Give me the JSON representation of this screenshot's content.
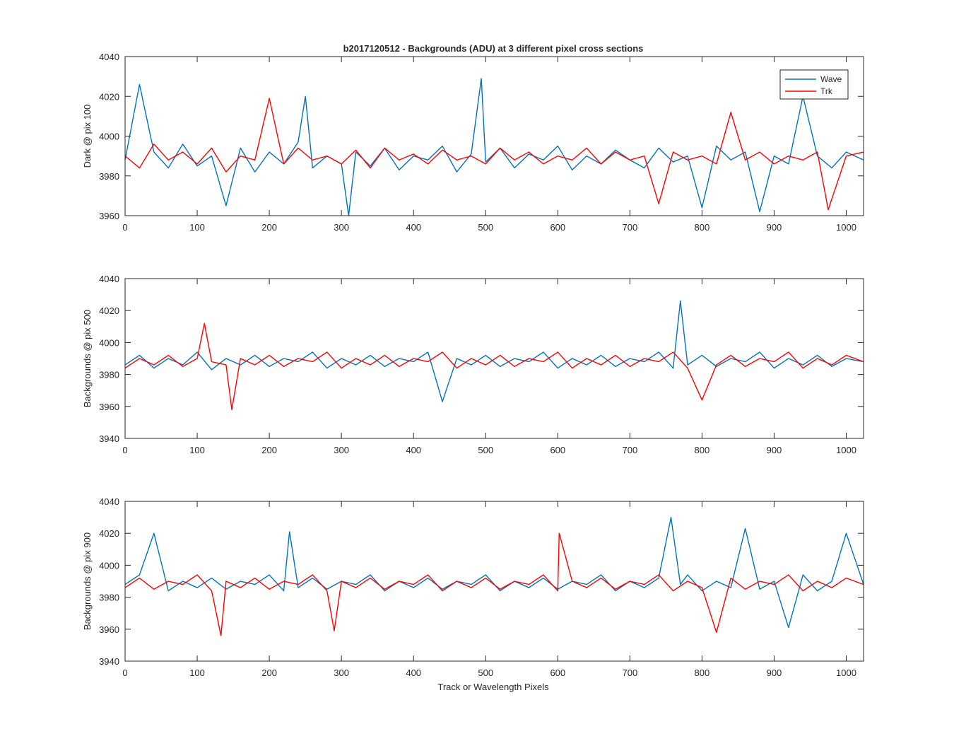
{
  "figure": {
    "title": "b2017120512 - Backgrounds (ADU) at 3 different pixel cross sections",
    "xlabel": "Track or Wavelength Pixels"
  },
  "legend": {
    "entries": [
      {
        "name": "Wave",
        "color": "#0072BD"
      },
      {
        "name": "Trk",
        "color": "#FF0000"
      }
    ],
    "placement": "top-right of first panel"
  },
  "chart_data": [
    {
      "type": "line",
      "ylabel": "Dark @ pix 100",
      "xlim": [
        0,
        1024
      ],
      "ylim": [
        3960,
        4040
      ],
      "xticks": [
        0,
        100,
        200,
        300,
        400,
        500,
        600,
        700,
        800,
        900,
        1000
      ],
      "yticks": [
        3960,
        3980,
        4000,
        4020,
        4040
      ],
      "series": [
        {
          "name": "Wave",
          "color": "#0072BD",
          "x": [
            0,
            20,
            40,
            60,
            80,
            100,
            120,
            140,
            160,
            180,
            200,
            220,
            240,
            250,
            260,
            280,
            300,
            310,
            320,
            340,
            360,
            380,
            400,
            420,
            440,
            460,
            480,
            494,
            500,
            520,
            540,
            560,
            580,
            600,
            620,
            640,
            660,
            680,
            700,
            720,
            740,
            760,
            780,
            800,
            820,
            840,
            860,
            880,
            900,
            920,
            940,
            960,
            980,
            1000,
            1024
          ],
          "y": [
            3988,
            4026,
            3992,
            3984,
            3996,
            3985,
            3990,
            3965,
            3994,
            3982,
            3992,
            3986,
            3997,
            4020,
            3984,
            3990,
            3986,
            3960,
            3992,
            3985,
            3994,
            3983,
            3990,
            3988,
            3995,
            3982,
            3991,
            4029,
            3987,
            3994,
            3984,
            3991,
            3988,
            3995,
            3983,
            3990,
            3986,
            3993,
            3988,
            3984,
            3994,
            3987,
            3990,
            3964,
            3995,
            3988,
            3992,
            3962,
            3990,
            3986,
            4020,
            3990,
            3984,
            3992,
            3988
          ]
        },
        {
          "name": "Trk",
          "color": "#FF0000",
          "x": [
            0,
            20,
            40,
            60,
            80,
            100,
            120,
            140,
            160,
            180,
            200,
            220,
            240,
            260,
            280,
            300,
            320,
            340,
            360,
            380,
            400,
            420,
            440,
            460,
            480,
            500,
            520,
            540,
            560,
            580,
            600,
            620,
            640,
            660,
            680,
            700,
            720,
            740,
            760,
            780,
            800,
            820,
            840,
            860,
            880,
            900,
            920,
            940,
            960,
            975,
            1000,
            1024
          ],
          "y": [
            3990,
            3984,
            3996,
            3988,
            3992,
            3986,
            3994,
            3982,
            3990,
            3988,
            4019,
            3986,
            3994,
            3988,
            3990,
            3986,
            3993,
            3984,
            3994,
            3988,
            3991,
            3986,
            3993,
            3988,
            3990,
            3986,
            3994,
            3988,
            3992,
            3986,
            3990,
            3988,
            3994,
            3986,
            3992,
            3988,
            3990,
            3966,
            3992,
            3988,
            3990,
            3986,
            4012,
            3988,
            3992,
            3986,
            3990,
            3988,
            3992,
            3963,
            3990,
            3992
          ]
        }
      ]
    },
    {
      "type": "line",
      "ylabel": "Backgrounds @ pix 500",
      "xlim": [
        0,
        1024
      ],
      "ylim": [
        3940,
        4040
      ],
      "xticks": [
        0,
        100,
        200,
        300,
        400,
        500,
        600,
        700,
        800,
        900,
        1000
      ],
      "yticks": [
        3940,
        3960,
        3980,
        4000,
        4020,
        4040
      ],
      "series": [
        {
          "name": "Wave",
          "color": "#0072BD",
          "x": [
            0,
            20,
            40,
            60,
            80,
            100,
            120,
            140,
            160,
            180,
            200,
            220,
            240,
            260,
            280,
            300,
            320,
            340,
            360,
            380,
            400,
            420,
            440,
            460,
            480,
            500,
            520,
            540,
            560,
            580,
            600,
            620,
            640,
            660,
            680,
            700,
            720,
            740,
            760,
            770,
            780,
            800,
            820,
            840,
            860,
            880,
            900,
            920,
            940,
            960,
            980,
            1000,
            1024
          ],
          "y": [
            3986,
            3992,
            3984,
            3990,
            3986,
            3994,
            3983,
            3990,
            3986,
            3992,
            3985,
            3990,
            3988,
            3994,
            3984,
            3990,
            3986,
            3992,
            3985,
            3990,
            3988,
            3994,
            3963,
            3990,
            3986,
            3992,
            3985,
            3990,
            3988,
            3994,
            3984,
            3990,
            3986,
            3992,
            3985,
            3990,
            3988,
            3994,
            3984,
            4026,
            3986,
            3992,
            3985,
            3990,
            3988,
            3994,
            3984,
            3990,
            3986,
            3992,
            3985,
            3990,
            3988
          ]
        },
        {
          "name": "Trk",
          "color": "#FF0000",
          "x": [
            0,
            20,
            40,
            60,
            80,
            100,
            110,
            120,
            140,
            148,
            160,
            180,
            200,
            220,
            240,
            260,
            280,
            300,
            320,
            340,
            360,
            380,
            400,
            420,
            440,
            460,
            480,
            500,
            520,
            540,
            560,
            580,
            600,
            620,
            640,
            660,
            680,
            700,
            720,
            740,
            760,
            780,
            800,
            820,
            840,
            860,
            880,
            900,
            920,
            940,
            960,
            980,
            1000,
            1024
          ],
          "y": [
            3984,
            3990,
            3986,
            3992,
            3985,
            3990,
            4012,
            3988,
            3986,
            3958,
            3990,
            3986,
            3992,
            3985,
            3990,
            3988,
            3994,
            3984,
            3990,
            3986,
            3992,
            3985,
            3990,
            3988,
            3994,
            3984,
            3990,
            3986,
            3992,
            3985,
            3990,
            3988,
            3994,
            3984,
            3990,
            3986,
            3992,
            3985,
            3990,
            3988,
            3994,
            3984,
            3964,
            3986,
            3992,
            3985,
            3990,
            3988,
            3994,
            3984,
            3990,
            3986,
            3992,
            3988
          ]
        }
      ]
    },
    {
      "type": "line",
      "ylabel": "Backgrounds @ pix 900",
      "xlim": [
        0,
        1024
      ],
      "ylim": [
        3940,
        4040
      ],
      "xticks": [
        0,
        100,
        200,
        300,
        400,
        500,
        600,
        700,
        800,
        900,
        1000
      ],
      "yticks": [
        3940,
        3960,
        3980,
        4000,
        4020,
        4040
      ],
      "series": [
        {
          "name": "Wave",
          "color": "#0072BD",
          "x": [
            0,
            20,
            40,
            60,
            80,
            100,
            120,
            140,
            160,
            180,
            200,
            220,
            228,
            240,
            260,
            280,
            300,
            320,
            340,
            360,
            380,
            400,
            420,
            440,
            460,
            480,
            500,
            520,
            540,
            560,
            580,
            600,
            620,
            640,
            660,
            680,
            700,
            720,
            740,
            757,
            770,
            780,
            800,
            820,
            840,
            860,
            880,
            900,
            920,
            940,
            960,
            980,
            1000,
            1024
          ],
          "y": [
            3988,
            3994,
            4020,
            3984,
            3990,
            3986,
            3992,
            3985,
            3990,
            3988,
            3994,
            3984,
            4021,
            3986,
            3992,
            3985,
            3990,
            3988,
            3994,
            3984,
            3990,
            3986,
            3992,
            3985,
            3990,
            3988,
            3994,
            3984,
            3990,
            3986,
            3992,
            3985,
            3990,
            3988,
            3994,
            3984,
            3990,
            3986,
            3992,
            4030,
            3988,
            3994,
            3984,
            3990,
            3986,
            4023,
            3985,
            3990,
            3961,
            3994,
            3984,
            3990,
            4020,
            3988
          ]
        },
        {
          "name": "Trk",
          "color": "#FF0000",
          "x": [
            0,
            20,
            40,
            60,
            80,
            100,
            120,
            133,
            140,
            160,
            180,
            200,
            220,
            240,
            260,
            280,
            290,
            300,
            320,
            340,
            360,
            380,
            400,
            420,
            440,
            460,
            480,
            500,
            520,
            540,
            560,
            580,
            600,
            602,
            620,
            640,
            660,
            680,
            700,
            720,
            740,
            760,
            780,
            800,
            820,
            840,
            860,
            880,
            900,
            920,
            940,
            960,
            980,
            1000,
            1024
          ],
          "y": [
            3986,
            3992,
            3985,
            3990,
            3988,
            3994,
            3984,
            3956,
            3990,
            3986,
            3992,
            3985,
            3990,
            3988,
            3994,
            3984,
            3959,
            3990,
            3986,
            3992,
            3985,
            3990,
            3988,
            3994,
            3984,
            3990,
            3986,
            3992,
            3985,
            3990,
            3988,
            3994,
            3984,
            4020,
            3990,
            3986,
            3992,
            3985,
            3990,
            3988,
            3994,
            3984,
            3990,
            3986,
            3958,
            3992,
            3985,
            3990,
            3988,
            3994,
            3984,
            3990,
            3986,
            3992,
            3988
          ]
        }
      ]
    }
  ]
}
